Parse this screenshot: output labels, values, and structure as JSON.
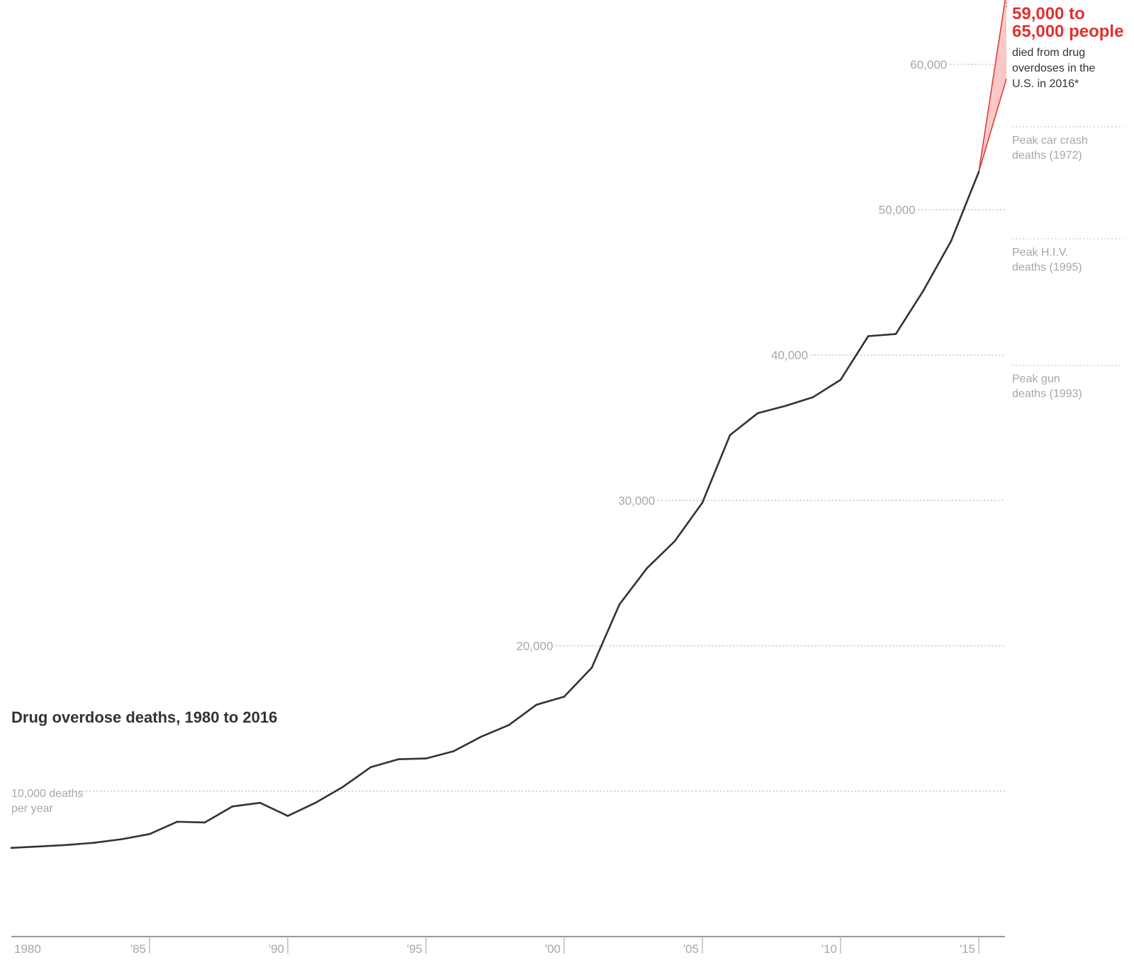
{
  "chart_data": {
    "type": "line",
    "title": "Drug overdose deaths, 1980 to 2016",
    "unit_label": [
      "10,000 deaths",
      "per year"
    ],
    "x": [
      1980,
      1981,
      1982,
      1983,
      1984,
      1985,
      1986,
      1987,
      1988,
      1989,
      1990,
      1991,
      1992,
      1993,
      1994,
      1995,
      1996,
      1997,
      1998,
      1999,
      2000,
      2001,
      2002,
      2003,
      2004,
      2005,
      2006,
      2007,
      2008,
      2009,
      2010,
      2011,
      2012,
      2013,
      2014,
      2015
    ],
    "y": [
      6100,
      6200,
      6300,
      6450,
      6700,
      7050,
      7900,
      7850,
      8950,
      9200,
      8300,
      9200,
      10300,
      11650,
      12200,
      12250,
      12750,
      13750,
      14550,
      15950,
      16500,
      18500,
      22850,
      25350,
      27200,
      29850,
      34500,
      36000,
      36500,
      37100,
      38300,
      41300,
      41450,
      44450,
      47850,
      52600
    ],
    "projection": {
      "x": 2016,
      "low": 59000,
      "high": 65000
    },
    "y_ticks": [
      {
        "value": 10000,
        "label": ""
      },
      {
        "value": 20000,
        "label": "20,000"
      },
      {
        "value": 30000,
        "label": "30,000"
      },
      {
        "value": 40000,
        "label": "40,000"
      },
      {
        "value": 50000,
        "label": "50,000"
      },
      {
        "value": 60000,
        "label": "60,000"
      }
    ],
    "x_ticks": [
      {
        "year": 1980,
        "label": "1980"
      },
      {
        "year": 1985,
        "label": "'85"
      },
      {
        "year": 1990,
        "label": "'90"
      },
      {
        "year": 1995,
        "label": "'95"
      },
      {
        "year": 2000,
        "label": "'00"
      },
      {
        "year": 2005,
        "label": "'05"
      },
      {
        "year": 2010,
        "label": "'10"
      },
      {
        "year": 2015,
        "label": "'15"
      }
    ],
    "reference_lines": [
      {
        "value": 55700,
        "label": [
          "Peak car crash",
          "deaths (1972)"
        ]
      },
      {
        "value": 48000,
        "label": [
          "Peak H.I.V.",
          "deaths (1995)"
        ]
      },
      {
        "value": 39300,
        "label": [
          "Peak gun",
          "deaths (1993)"
        ]
      }
    ],
    "highlight": {
      "lines": [
        "59,000 to",
        "65,000 people"
      ],
      "sub": [
        "died from drug",
        "overdoses in the",
        "U.S. in 2016*"
      ]
    },
    "xlim": [
      1980,
      2016
    ],
    "ylim": [
      0,
      65000
    ],
    "grid": true
  },
  "colors": {
    "line": "#333333",
    "accent": "#e03131",
    "band": "#f9b5b5",
    "muted": "#a7a7a7",
    "axis": "#999999"
  }
}
